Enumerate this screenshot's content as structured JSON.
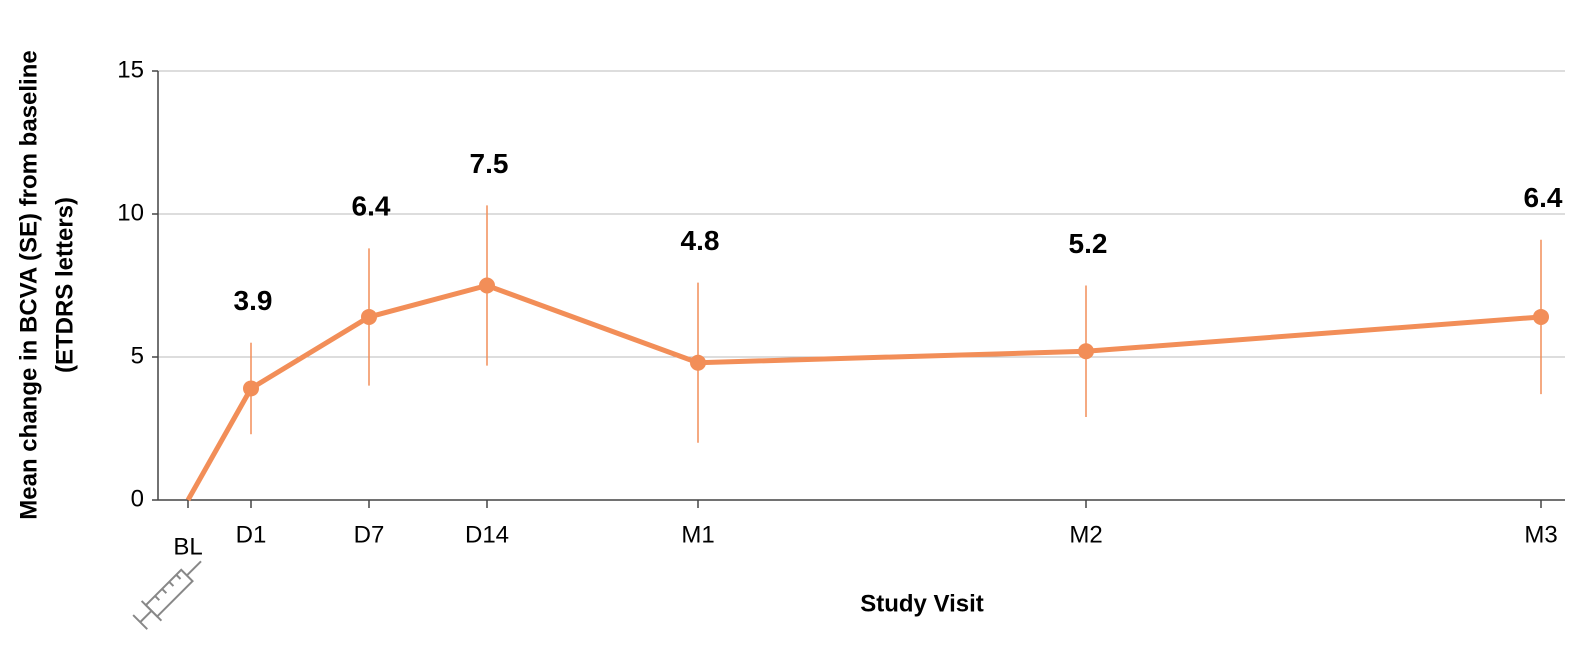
{
  "chart_data": {
    "type": "line",
    "xlabel": "Study Visit",
    "ylabel": [
      "Mean change in BCVA (SE) from baseline",
      "(ETDRS letters)"
    ],
    "categories": [
      "BL",
      "D1",
      "D7",
      "D14",
      "M1",
      "M2",
      "M3"
    ],
    "series": [
      {
        "color": "#f28e58",
        "values": [
          0,
          3.9,
          6.4,
          7.5,
          4.8,
          5.2,
          6.4
        ],
        "value_labels": [
          null,
          "3.9",
          "6.4",
          "7.5",
          "4.8",
          "5.2",
          "6.4"
        ],
        "errors": [
          null,
          1.6,
          2.4,
          2.8,
          2.8,
          2.3,
          2.7
        ]
      }
    ],
    "ylim": [
      0,
      15
    ],
    "yticks": [
      0,
      5,
      10,
      15
    ],
    "grid": true
  }
}
